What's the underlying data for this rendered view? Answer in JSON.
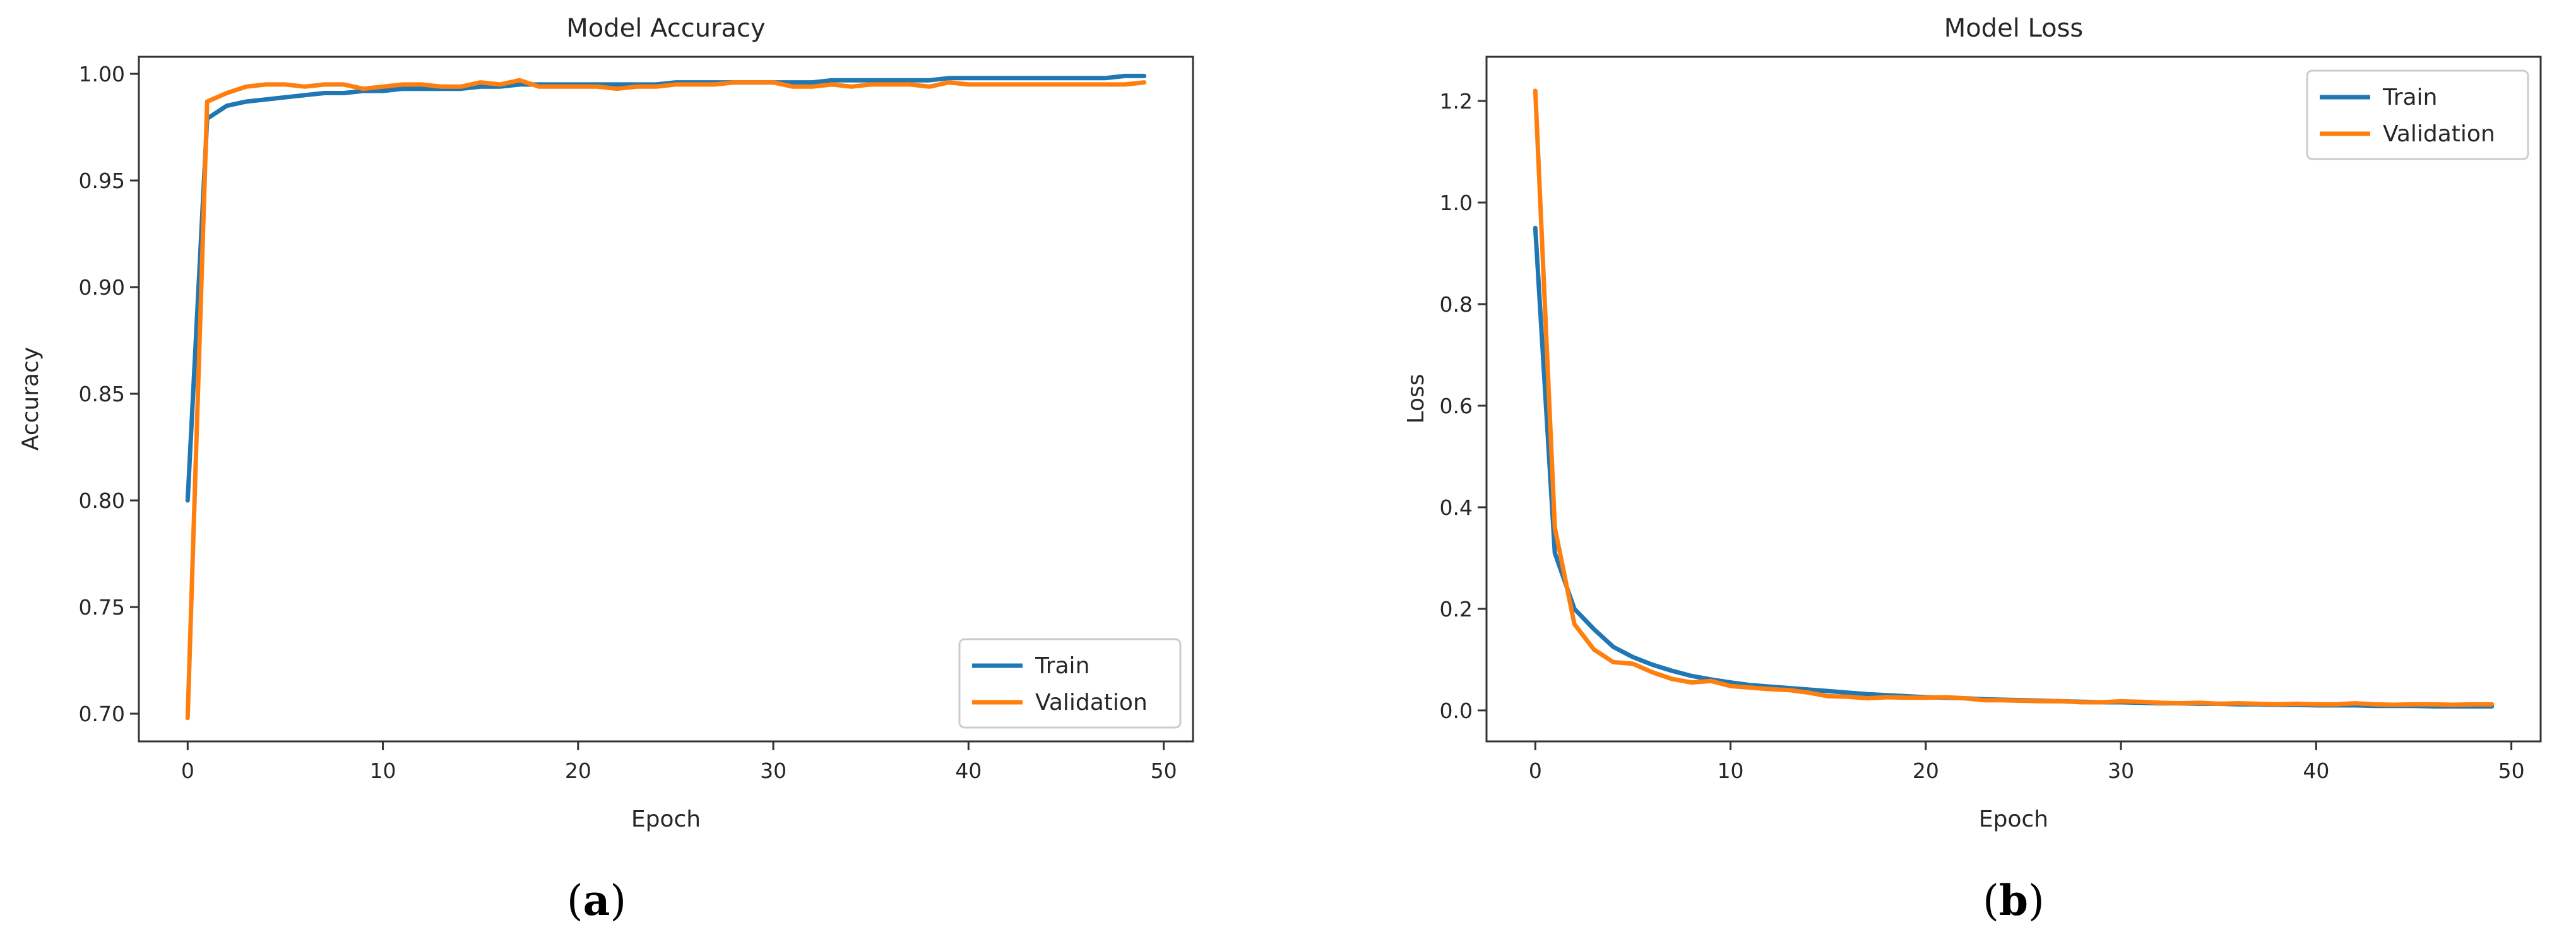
{
  "chart_data": [
    {
      "type": "line",
      "title": "Model Accuracy",
      "xlabel": "Epoch",
      "ylabel": "Accuracy",
      "caption": {
        "open": "(",
        "letter": "a",
        "close": ")"
      },
      "xlim": [
        -2.5,
        51.5
      ],
      "ylim": [
        0.687,
        1.008
      ],
      "xticks": [
        0,
        10,
        20,
        30,
        40,
        50
      ],
      "yticks": [
        0.7,
        0.75,
        0.8,
        0.85,
        0.9,
        0.95,
        1.0
      ],
      "tick_decimals": 2,
      "legend_position": "lower-right",
      "grid": false,
      "x": [
        0,
        1,
        2,
        3,
        4,
        5,
        6,
        7,
        8,
        9,
        10,
        11,
        12,
        13,
        14,
        15,
        16,
        17,
        18,
        19,
        20,
        21,
        22,
        23,
        24,
        25,
        26,
        27,
        28,
        29,
        30,
        31,
        32,
        33,
        34,
        35,
        36,
        37,
        38,
        39,
        40,
        41,
        42,
        43,
        44,
        45,
        46,
        47,
        48,
        49
      ],
      "series": [
        {
          "name": "Train",
          "color": "#1f77b4",
          "values": [
            0.8,
            0.979,
            0.985,
            0.987,
            0.988,
            0.989,
            0.99,
            0.991,
            0.991,
            0.992,
            0.992,
            0.993,
            0.993,
            0.993,
            0.993,
            0.994,
            0.994,
            0.995,
            0.995,
            0.995,
            0.995,
            0.995,
            0.995,
            0.995,
            0.995,
            0.996,
            0.996,
            0.996,
            0.996,
            0.996,
            0.996,
            0.996,
            0.996,
            0.997,
            0.997,
            0.997,
            0.997,
            0.997,
            0.997,
            0.998,
            0.998,
            0.998,
            0.998,
            0.998,
            0.998,
            0.998,
            0.998,
            0.998,
            0.999,
            0.999
          ]
        },
        {
          "name": "Validation",
          "color": "#ff7f0e",
          "values": [
            0.698,
            0.987,
            0.991,
            0.994,
            0.995,
            0.995,
            0.994,
            0.995,
            0.995,
            0.993,
            0.994,
            0.995,
            0.995,
            0.994,
            0.994,
            0.996,
            0.995,
            0.997,
            0.994,
            0.994,
            0.994,
            0.994,
            0.993,
            0.994,
            0.994,
            0.995,
            0.995,
            0.995,
            0.996,
            0.996,
            0.996,
            0.994,
            0.994,
            0.995,
            0.994,
            0.995,
            0.995,
            0.995,
            0.994,
            0.996,
            0.995,
            0.995,
            0.995,
            0.995,
            0.995,
            0.995,
            0.995,
            0.995,
            0.995,
            0.996
          ]
        }
      ]
    },
    {
      "type": "line",
      "title": "Model Loss",
      "xlabel": "Epoch",
      "ylabel": "Loss",
      "caption": {
        "open": "(",
        "letter": "b",
        "close": ")"
      },
      "xlim": [
        -2.5,
        51.5
      ],
      "ylim": [
        -0.061,
        1.287
      ],
      "xticks": [
        0,
        10,
        20,
        30,
        40,
        50
      ],
      "yticks": [
        0.0,
        0.2,
        0.4,
        0.6,
        0.8,
        1.0,
        1.2
      ],
      "tick_decimals": 1,
      "legend_position": "upper-right",
      "grid": false,
      "x": [
        0,
        1,
        2,
        3,
        4,
        5,
        6,
        7,
        8,
        9,
        10,
        11,
        12,
        13,
        14,
        15,
        16,
        17,
        18,
        19,
        20,
        21,
        22,
        23,
        24,
        25,
        26,
        27,
        28,
        29,
        30,
        31,
        32,
        33,
        34,
        35,
        36,
        37,
        38,
        39,
        40,
        41,
        42,
        43,
        44,
        45,
        46,
        47,
        48,
        49
      ],
      "series": [
        {
          "name": "Train",
          "color": "#1f77b4",
          "values": [
            0.95,
            0.31,
            0.2,
            0.16,
            0.125,
            0.105,
            0.09,
            0.078,
            0.068,
            0.061,
            0.055,
            0.05,
            0.047,
            0.044,
            0.041,
            0.038,
            0.035,
            0.032,
            0.03,
            0.028,
            0.026,
            0.025,
            0.024,
            0.022,
            0.021,
            0.02,
            0.019,
            0.018,
            0.017,
            0.016,
            0.016,
            0.015,
            0.014,
            0.014,
            0.013,
            0.013,
            0.012,
            0.012,
            0.011,
            0.011,
            0.01,
            0.01,
            0.01,
            0.009,
            0.009,
            0.009,
            0.008,
            0.008,
            0.008,
            0.008
          ]
        },
        {
          "name": "Validation",
          "color": "#ff7f0e",
          "values": [
            1.22,
            0.36,
            0.17,
            0.12,
            0.095,
            0.092,
            0.075,
            0.062,
            0.055,
            0.058,
            0.048,
            0.045,
            0.042,
            0.04,
            0.035,
            0.028,
            0.027,
            0.024,
            0.026,
            0.025,
            0.025,
            0.026,
            0.024,
            0.02,
            0.02,
            0.019,
            0.018,
            0.018,
            0.016,
            0.016,
            0.018,
            0.017,
            0.015,
            0.014,
            0.015,
            0.013,
            0.014,
            0.013,
            0.012,
            0.013,
            0.012,
            0.012,
            0.014,
            0.012,
            0.011,
            0.012,
            0.012,
            0.011,
            0.012,
            0.012
          ]
        }
      ]
    }
  ]
}
